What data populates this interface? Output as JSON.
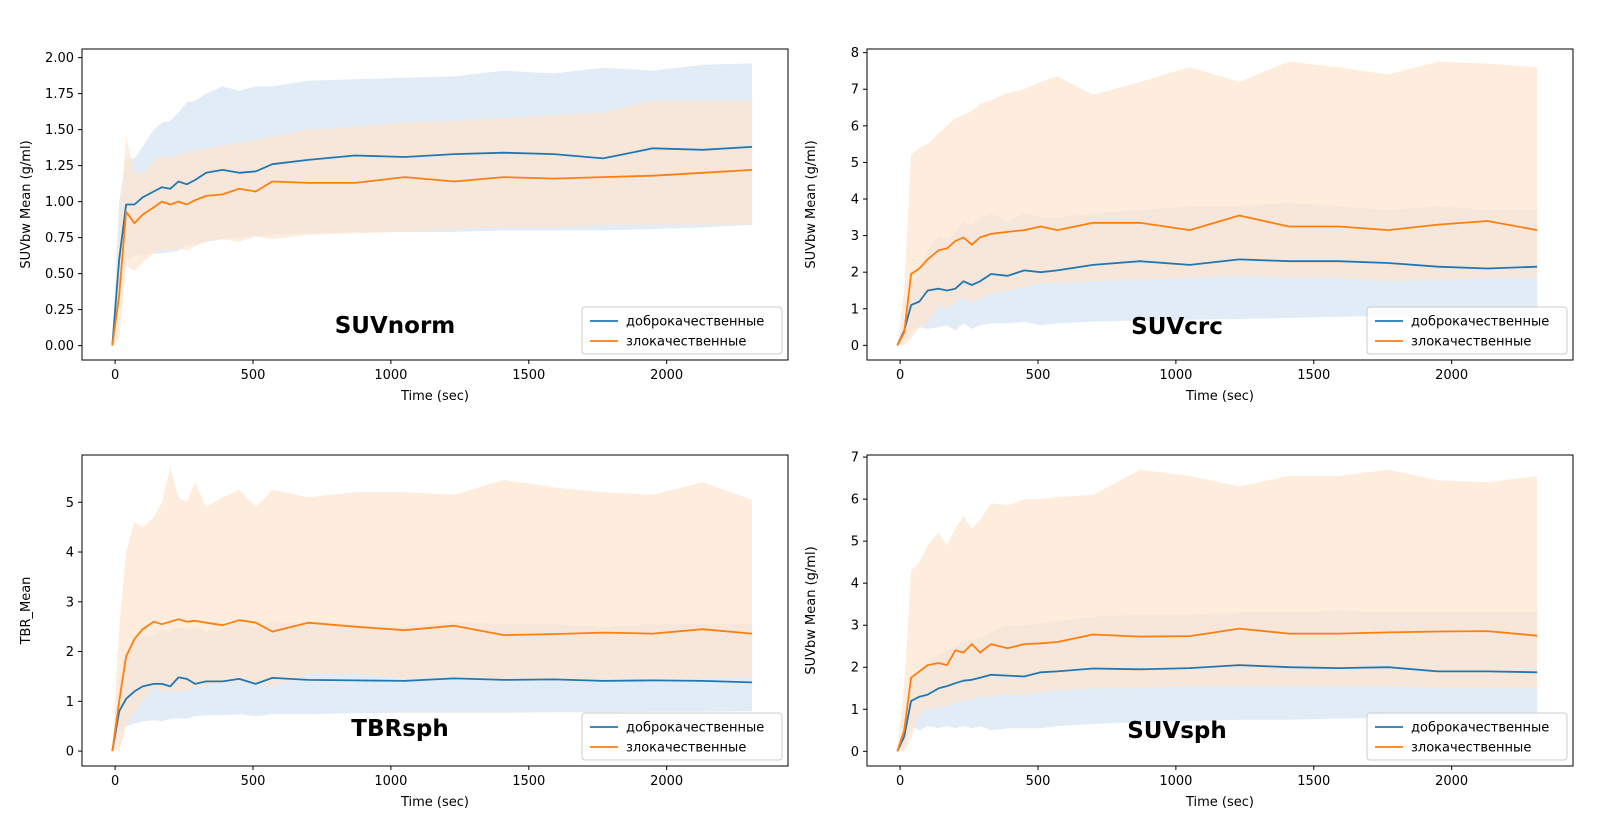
{
  "colors": {
    "benign": "#1f77b4",
    "malignant": "#ff7f0e",
    "benign_band": "#dce9f5",
    "malignant_band": "#fde6d2",
    "overlap_band": "#e6dfd8"
  },
  "legend": {
    "benign": "доброкачественные",
    "malignant": "злокачественные"
  },
  "chart_data": [
    {
      "type": "line",
      "title": "SUVnorm",
      "xlabel": "Time (sec)",
      "ylabel": "SUVbw Mean (g/ml)",
      "xlim": [
        -120,
        2440
      ],
      "ylim": [
        -0.1,
        2.06
      ],
      "xticks": [
        0,
        500,
        1000,
        1500,
        2000
      ],
      "yticks": [
        0.0,
        0.25,
        0.5,
        0.75,
        1.0,
        1.25,
        1.5,
        1.75,
        2.0
      ],
      "ytick_labels": [
        "0.00",
        "0.25",
        "0.50",
        "0.75",
        "1.00",
        "1.25",
        "1.50",
        "1.75",
        "2.00"
      ],
      "legend_position": "lower-right",
      "grid": false,
      "x": [
        -10,
        15,
        40,
        70,
        100,
        140,
        170,
        200,
        230,
        260,
        290,
        330,
        390,
        450,
        510,
        570,
        700,
        870,
        1050,
        1230,
        1410,
        1590,
        1770,
        1950,
        2130,
        2310
      ],
      "series": [
        {
          "name": "доброкачественные",
          "values": [
            0.0,
            0.6,
            0.98,
            0.98,
            1.03,
            1.07,
            1.1,
            1.09,
            1.14,
            1.12,
            1.15,
            1.2,
            1.22,
            1.2,
            1.21,
            1.26,
            1.29,
            1.32,
            1.31,
            1.33,
            1.34,
            1.33,
            1.3,
            1.37,
            1.36,
            1.38
          ],
          "lower": [
            0.0,
            0.35,
            0.6,
            0.62,
            0.63,
            0.64,
            0.64,
            0.65,
            0.66,
            0.7,
            0.7,
            0.72,
            0.74,
            0.75,
            0.76,
            0.77,
            0.78,
            0.79,
            0.79,
            0.79,
            0.8,
            0.8,
            0.8,
            0.81,
            0.82,
            0.84
          ],
          "upper": [
            0.0,
            1.0,
            1.3,
            1.3,
            1.38,
            1.5,
            1.55,
            1.56,
            1.62,
            1.69,
            1.7,
            1.75,
            1.8,
            1.77,
            1.8,
            1.8,
            1.84,
            1.85,
            1.86,
            1.87,
            1.91,
            1.89,
            1.93,
            1.91,
            1.95,
            1.96
          ]
        },
        {
          "name": "злокачественные",
          "values": [
            0.0,
            0.35,
            0.93,
            0.85,
            0.91,
            0.96,
            1.0,
            0.98,
            1.0,
            0.98,
            1.01,
            1.04,
            1.05,
            1.09,
            1.07,
            1.14,
            1.13,
            1.13,
            1.17,
            1.14,
            1.17,
            1.16,
            1.17,
            1.18,
            1.2,
            1.22
          ],
          "lower": [
            0.0,
            0.05,
            0.55,
            0.52,
            0.58,
            0.64,
            0.67,
            0.66,
            0.68,
            0.66,
            0.69,
            0.72,
            0.74,
            0.72,
            0.76,
            0.74,
            0.77,
            0.78,
            0.79,
            0.81,
            0.82,
            0.82,
            0.84,
            0.84,
            0.84,
            0.84
          ],
          "upper": [
            0.0,
            0.8,
            1.45,
            1.2,
            1.2,
            1.28,
            1.32,
            1.3,
            1.33,
            1.34,
            1.35,
            1.37,
            1.39,
            1.41,
            1.43,
            1.45,
            1.5,
            1.52,
            1.55,
            1.56,
            1.58,
            1.6,
            1.62,
            1.7,
            1.7,
            1.7
          ]
        }
      ]
    },
    {
      "type": "line",
      "title": "SUVcrc",
      "xlabel": "Time (sec)",
      "ylabel": "SUVbw Mean (g/ml)",
      "xlim": [
        -120,
        2440
      ],
      "ylim": [
        -0.4,
        8.1
      ],
      "xticks": [
        0,
        500,
        1000,
        1500,
        2000
      ],
      "yticks": [
        0,
        1,
        2,
        3,
        4,
        5,
        6,
        7,
        8
      ],
      "ytick_labels": [
        "0",
        "1",
        "2",
        "3",
        "4",
        "5",
        "6",
        "7",
        "8"
      ],
      "legend_position": "lower-right",
      "grid": false,
      "x": [
        -10,
        15,
        40,
        70,
        100,
        140,
        170,
        200,
        230,
        260,
        290,
        330,
        390,
        450,
        510,
        570,
        700,
        870,
        1050,
        1230,
        1410,
        1590,
        1770,
        1950,
        2130,
        2310
      ],
      "series": [
        {
          "name": "доброкачественные",
          "values": [
            0.0,
            0.4,
            1.1,
            1.2,
            1.5,
            1.55,
            1.5,
            1.55,
            1.75,
            1.65,
            1.75,
            1.95,
            1.9,
            2.05,
            2.0,
            2.05,
            2.2,
            2.3,
            2.2,
            2.35,
            2.3,
            2.3,
            2.25,
            2.15,
            2.1,
            2.15
          ],
          "lower": [
            0.0,
            0.1,
            0.4,
            0.5,
            0.45,
            0.5,
            0.55,
            0.4,
            0.6,
            0.45,
            0.55,
            0.6,
            0.6,
            0.65,
            0.55,
            0.6,
            0.65,
            0.68,
            0.7,
            0.72,
            0.75,
            0.78,
            0.8,
            0.82,
            0.8,
            0.8
          ],
          "upper": [
            0.0,
            0.6,
            1.7,
            1.9,
            2.6,
            3.0,
            2.9,
            3.1,
            3.4,
            3.3,
            3.5,
            3.6,
            3.4,
            3.6,
            3.5,
            3.5,
            3.6,
            3.7,
            3.8,
            3.8,
            3.9,
            3.8,
            3.7,
            3.8,
            3.7,
            3.7
          ]
        },
        {
          "name": "злокачественные",
          "values": [
            0.0,
            0.35,
            1.95,
            2.1,
            2.35,
            2.6,
            2.65,
            2.85,
            2.95,
            2.75,
            2.95,
            3.05,
            3.1,
            3.15,
            3.25,
            3.15,
            3.35,
            3.35,
            3.15,
            3.55,
            3.25,
            3.25,
            3.15,
            3.3,
            3.4,
            3.15
          ],
          "lower": [
            0.0,
            0.0,
            0.2,
            0.5,
            0.6,
            1.1,
            1.0,
            1.2,
            1.3,
            1.15,
            1.3,
            1.4,
            1.5,
            1.6,
            1.7,
            1.7,
            1.75,
            1.8,
            1.85,
            1.9,
            1.85,
            1.85,
            1.75,
            1.8,
            1.85,
            1.85
          ],
          "upper": [
            0.0,
            1.5,
            5.2,
            5.4,
            5.5,
            5.8,
            6.0,
            6.2,
            6.3,
            6.4,
            6.6,
            6.7,
            6.9,
            7.0,
            7.2,
            7.35,
            6.85,
            7.2,
            7.6,
            7.2,
            7.75,
            7.6,
            7.4,
            7.75,
            7.7,
            7.6
          ]
        }
      ]
    },
    {
      "type": "line",
      "title": "TBRsph",
      "xlabel": "Time (sec)",
      "ylabel": "TBR_Mean",
      "xlim": [
        -120,
        2440
      ],
      "ylim": [
        -0.3,
        5.95
      ],
      "xticks": [
        0,
        500,
        1000,
        1500,
        2000
      ],
      "yticks": [
        0,
        1,
        2,
        3,
        4,
        5
      ],
      "ytick_labels": [
        "0",
        "1",
        "2",
        "3",
        "4",
        "5"
      ],
      "legend_position": "lower-right",
      "grid": false,
      "x": [
        -10,
        15,
        40,
        70,
        100,
        140,
        170,
        200,
        230,
        260,
        290,
        330,
        390,
        450,
        510,
        570,
        700,
        870,
        1050,
        1230,
        1410,
        1590,
        1770,
        1950,
        2130,
        2310
      ],
      "series": [
        {
          "name": "доброкачественные",
          "values": [
            0.0,
            0.8,
            1.05,
            1.2,
            1.3,
            1.35,
            1.35,
            1.3,
            1.48,
            1.45,
            1.35,
            1.4,
            1.4,
            1.45,
            1.35,
            1.47,
            1.43,
            1.42,
            1.41,
            1.46,
            1.43,
            1.44,
            1.41,
            1.42,
            1.41,
            1.38
          ],
          "lower": [
            0.0,
            0.3,
            0.5,
            0.55,
            0.6,
            0.62,
            0.6,
            0.65,
            0.66,
            0.65,
            0.7,
            0.72,
            0.72,
            0.74,
            0.7,
            0.74,
            0.74,
            0.76,
            0.77,
            0.77,
            0.77,
            0.78,
            0.78,
            0.79,
            0.79,
            0.8
          ],
          "upper": [
            0.0,
            1.4,
            2.0,
            2.2,
            2.3,
            2.35,
            2.45,
            2.4,
            2.5,
            2.45,
            2.5,
            2.4,
            2.45,
            2.6,
            2.5,
            2.6,
            2.55,
            2.55,
            2.5,
            2.6,
            2.55,
            2.55,
            2.5,
            2.55,
            2.55,
            2.55
          ]
        },
        {
          "name": "злокачественные",
          "values": [
            0.0,
            1.0,
            1.9,
            2.25,
            2.45,
            2.6,
            2.55,
            2.6,
            2.65,
            2.6,
            2.62,
            2.58,
            2.53,
            2.63,
            2.58,
            2.4,
            2.58,
            2.5,
            2.43,
            2.52,
            2.33,
            2.35,
            2.38,
            2.36,
            2.45,
            2.36
          ],
          "lower": [
            0.0,
            0.0,
            0.5,
            0.8,
            1.0,
            1.3,
            1.2,
            1.2,
            1.2,
            1.2,
            1.3,
            1.3,
            1.35,
            1.4,
            1.35,
            1.3,
            1.55,
            1.55,
            1.45,
            1.5,
            1.45,
            1.45,
            1.45,
            1.45,
            1.45,
            1.5
          ],
          "upper": [
            0.0,
            2.5,
            4.0,
            4.6,
            4.5,
            4.7,
            5.0,
            5.7,
            5.1,
            5.0,
            5.4,
            4.9,
            5.1,
            5.25,
            4.9,
            5.25,
            5.1,
            5.2,
            5.2,
            5.15,
            5.45,
            5.3,
            5.2,
            5.15,
            5.4,
            5.05
          ]
        }
      ]
    },
    {
      "type": "line",
      "title": "SUVsph",
      "xlabel": "Time (sec)",
      "ylabel": "SUVbw Mean (g/ml)",
      "xlim": [
        -120,
        2440
      ],
      "ylim": [
        -0.35,
        7.05
      ],
      "xticks": [
        0,
        500,
        1000,
        1500,
        2000
      ],
      "yticks": [
        0,
        1,
        2,
        3,
        4,
        5,
        6,
        7
      ],
      "ytick_labels": [
        "0",
        "1",
        "2",
        "3",
        "4",
        "5",
        "6",
        "7"
      ],
      "legend_position": "lower-right",
      "grid": false,
      "x": [
        -10,
        15,
        40,
        70,
        100,
        140,
        170,
        200,
        230,
        260,
        290,
        330,
        390,
        450,
        510,
        570,
        700,
        870,
        1050,
        1230,
        1410,
        1590,
        1770,
        1950,
        2130,
        2310
      ],
      "series": [
        {
          "name": "доброкачественные",
          "values": [
            0.0,
            0.35,
            1.2,
            1.3,
            1.35,
            1.5,
            1.55,
            1.62,
            1.68,
            1.7,
            1.75,
            1.82,
            1.8,
            1.78,
            1.88,
            1.9,
            1.97,
            1.95,
            1.98,
            2.05,
            2.0,
            1.98,
            2.0,
            1.9,
            1.9,
            1.88
          ],
          "lower": [
            0.0,
            0.1,
            0.6,
            0.5,
            0.6,
            0.55,
            0.6,
            0.55,
            0.6,
            0.55,
            0.6,
            0.5,
            0.55,
            0.55,
            0.55,
            0.6,
            0.65,
            0.7,
            0.72,
            0.75,
            0.75,
            0.78,
            0.8,
            0.8,
            0.8,
            0.8
          ],
          "upper": [
            0.0,
            0.6,
            1.75,
            1.9,
            2.1,
            2.3,
            2.4,
            2.5,
            2.6,
            2.65,
            2.7,
            2.85,
            3.0,
            3.0,
            3.05,
            3.1,
            3.2,
            3.25,
            3.25,
            3.3,
            3.3,
            3.35,
            3.3,
            3.3,
            3.3,
            3.3
          ]
        },
        {
          "name": "злокачественные",
          "values": [
            0.0,
            0.5,
            1.75,
            1.9,
            2.05,
            2.1,
            2.05,
            2.4,
            2.35,
            2.55,
            2.35,
            2.55,
            2.45,
            2.55,
            2.57,
            2.6,
            2.78,
            2.73,
            2.74,
            2.92,
            2.8,
            2.8,
            2.83,
            2.85,
            2.86,
            2.75
          ],
          "lower": [
            0.0,
            0.0,
            0.3,
            0.9,
            1.0,
            1.05,
            1.1,
            1.15,
            1.2,
            1.25,
            1.3,
            1.3,
            1.35,
            1.35,
            1.4,
            1.45,
            1.5,
            1.5,
            1.55,
            1.55,
            1.55,
            1.55,
            1.55,
            1.5,
            1.5,
            1.5
          ],
          "upper": [
            0.0,
            1.5,
            4.3,
            4.5,
            4.9,
            5.2,
            4.9,
            5.3,
            5.6,
            5.3,
            5.5,
            5.9,
            5.85,
            6.0,
            6.0,
            6.05,
            6.1,
            6.7,
            6.55,
            6.3,
            6.55,
            6.55,
            6.7,
            6.45,
            6.4,
            6.55
          ]
        }
      ]
    }
  ]
}
